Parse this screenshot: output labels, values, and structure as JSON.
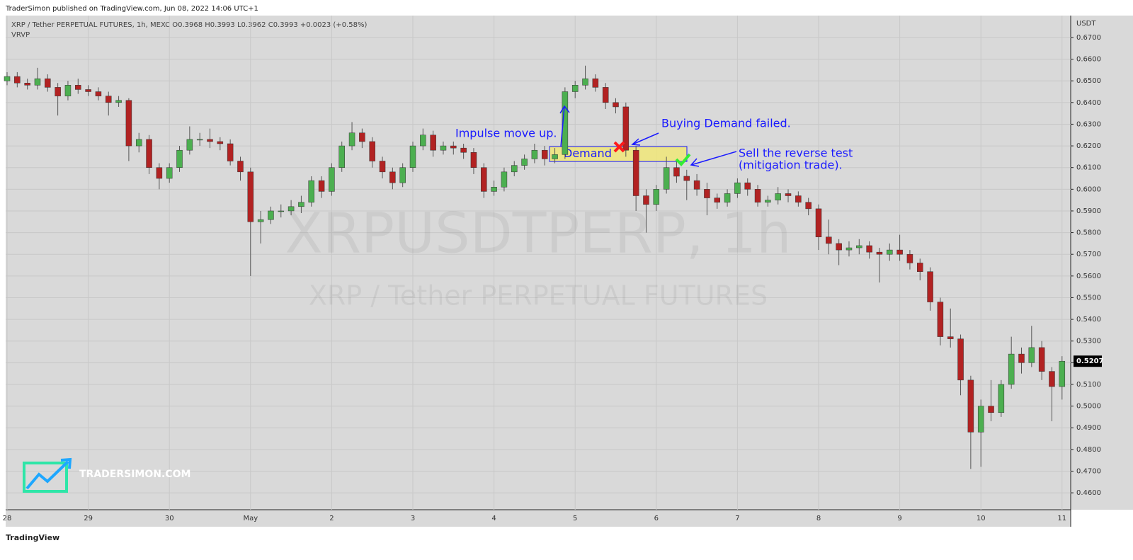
{
  "publisher_line": "TraderSimon published on TradingView.com, Jun 08, 2022 14:06 UTC+1",
  "footer_brand": "TradingView",
  "logo_text": "TRADERSIMON.COM",
  "chart_data": {
    "type": "candlestick",
    "title": "XRP / Tether PERPETUAL FUTURES, 1h, MEXC  O0.3968  H0.3993  L0.3962  C0.3993  +0.0023 (+0.58%)",
    "indicator": "VRVP",
    "watermark": "XRPUSDTPERP, 1h",
    "watermark_subtitle": "XRP / Tether PERPETUAL FUTURES",
    "y_unit": "USDT",
    "up_color": "#4caf50",
    "down_color": "#b22222",
    "grid": true,
    "categories": [
      "28",
      null,
      null,
      null,
      null,
      null,
      null,
      null,
      "29",
      null,
      null,
      null,
      null,
      null,
      null,
      null,
      "30",
      null,
      null,
      null,
      null,
      null,
      null,
      null,
      "May",
      null,
      null,
      null,
      null,
      null,
      null,
      null,
      "2",
      null,
      null,
      null,
      null,
      null,
      null,
      null,
      "3",
      null,
      null,
      null,
      null,
      null,
      null,
      null,
      "4",
      null,
      null,
      null,
      null,
      null,
      null,
      null,
      "5",
      null,
      null,
      null,
      null,
      null,
      null,
      null,
      "6",
      null,
      null,
      null,
      null,
      null,
      null,
      null,
      "7",
      null,
      null,
      null,
      null,
      null,
      null,
      null,
      "8",
      null,
      null,
      null,
      null,
      null,
      null,
      null,
      "9",
      null,
      null,
      null,
      null,
      null,
      null,
      null,
      "10",
      null,
      null,
      null,
      null,
      null,
      null,
      null,
      "11"
    ],
    "open": [
      0.65,
      0.652,
      0.649,
      0.648,
      0.651,
      0.647,
      0.643,
      0.648,
      0.646,
      0.645,
      0.643,
      0.64,
      0.641,
      0.62,
      0.623,
      0.61,
      0.605,
      0.61,
      0.618,
      0.623,
      0.623,
      0.622,
      0.621,
      0.613,
      0.608,
      0.585,
      0.586,
      0.59,
      0.59,
      0.592,
      0.594,
      0.604,
      0.599,
      0.61,
      0.62,
      0.626,
      0.622,
      0.613,
      0.608,
      0.603,
      0.61,
      0.62,
      0.625,
      0.618,
      0.62,
      0.619,
      0.617,
      0.61,
      0.599,
      0.601,
      0.608,
      0.611,
      0.614,
      0.618,
      0.614,
      0.616,
      0.645,
      0.648,
      0.651,
      0.647,
      0.64,
      0.638,
      0.618,
      0.597,
      0.593,
      0.6,
      0.61,
      0.606,
      0.604,
      0.6,
      0.596,
      0.594,
      0.598,
      0.603,
      0.6,
      0.594,
      0.595,
      0.598,
      0.597,
      0.594,
      0.591,
      0.578,
      0.575,
      0.572,
      0.573,
      0.574,
      0.571,
      0.57,
      0.572,
      0.57,
      0.566,
      0.562,
      0.548,
      0.532,
      0.531,
      0.512,
      0.488,
      0.5,
      0.497,
      0.51,
      0.524,
      0.52,
      0.527,
      0.516,
      0.509
    ],
    "high": [
      0.654,
      0.654,
      0.651,
      0.656,
      0.653,
      0.649,
      0.65,
      0.651,
      0.648,
      0.647,
      0.645,
      0.643,
      0.642,
      0.626,
      0.625,
      0.612,
      0.612,
      0.62,
      0.629,
      0.626,
      0.628,
      0.624,
      0.623,
      0.615,
      0.61,
      0.59,
      0.592,
      0.593,
      0.595,
      0.597,
      0.606,
      0.606,
      0.612,
      0.622,
      0.631,
      0.628,
      0.624,
      0.615,
      0.61,
      0.612,
      0.622,
      0.628,
      0.627,
      0.622,
      0.622,
      0.621,
      0.619,
      0.612,
      0.604,
      0.61,
      0.613,
      0.616,
      0.621,
      0.62,
      0.619,
      0.647,
      0.65,
      0.657,
      0.653,
      0.649,
      0.642,
      0.64,
      0.62,
      0.6,
      0.602,
      0.615,
      0.613,
      0.609,
      0.607,
      0.603,
      0.598,
      0.6,
      0.605,
      0.605,
      0.602,
      0.597,
      0.601,
      0.6,
      0.599,
      0.596,
      0.593,
      0.586,
      0.577,
      0.576,
      0.577,
      0.576,
      0.573,
      0.575,
      0.579,
      0.572,
      0.568,
      0.564,
      0.55,
      0.545,
      0.533,
      0.514,
      0.503,
      0.512,
      0.512,
      0.532,
      0.527,
      0.537,
      0.53,
      0.518,
      0.523
    ],
    "low": [
      0.648,
      0.647,
      0.646,
      0.646,
      0.645,
      0.634,
      0.641,
      0.644,
      0.643,
      0.641,
      0.634,
      0.638,
      0.613,
      0.617,
      0.607,
      0.6,
      0.603,
      0.608,
      0.616,
      0.62,
      0.619,
      0.618,
      0.611,
      0.604,
      0.56,
      0.575,
      0.584,
      0.587,
      0.588,
      0.589,
      0.592,
      0.596,
      0.597,
      0.608,
      0.618,
      0.619,
      0.61,
      0.605,
      0.6,
      0.601,
      0.608,
      0.618,
      0.615,
      0.616,
      0.616,
      0.614,
      0.607,
      0.596,
      0.597,
      0.599,
      0.606,
      0.609,
      0.612,
      0.611,
      0.612,
      0.614,
      0.642,
      0.646,
      0.645,
      0.637,
      0.635,
      0.615,
      0.59,
      0.58,
      0.59,
      0.598,
      0.603,
      0.595,
      0.597,
      0.588,
      0.591,
      0.592,
      0.596,
      0.597,
      0.592,
      0.592,
      0.593,
      0.594,
      0.592,
      0.588,
      0.572,
      0.57,
      0.565,
      0.569,
      0.57,
      0.568,
      0.557,
      0.567,
      0.567,
      0.563,
      0.558,
      0.544,
      0.528,
      0.527,
      0.505,
      0.471,
      0.472,
      0.493,
      0.495,
      0.508,
      0.515,
      0.518,
      0.512,
      0.493,
      0.503
    ],
    "close": [
      0.652,
      0.649,
      0.648,
      0.651,
      0.647,
      0.643,
      0.648,
      0.646,
      0.645,
      0.643,
      0.64,
      0.641,
      0.62,
      0.623,
      0.61,
      0.605,
      0.61,
      0.618,
      0.623,
      0.623,
      0.622,
      0.621,
      0.613,
      0.608,
      0.585,
      0.586,
      0.59,
      0.59,
      0.592,
      0.594,
      0.604,
      0.599,
      0.61,
      0.62,
      0.626,
      0.622,
      0.613,
      0.608,
      0.603,
      0.61,
      0.62,
      0.625,
      0.618,
      0.62,
      0.619,
      0.617,
      0.61,
      0.599,
      0.601,
      0.608,
      0.611,
      0.614,
      0.618,
      0.614,
      0.616,
      0.645,
      0.648,
      0.651,
      0.647,
      0.64,
      0.638,
      0.618,
      0.597,
      0.593,
      0.6,
      0.61,
      0.606,
      0.604,
      0.6,
      0.596,
      0.594,
      0.598,
      0.603,
      0.6,
      0.594,
      0.595,
      0.598,
      0.597,
      0.594,
      0.591,
      0.578,
      0.575,
      0.572,
      0.573,
      0.574,
      0.571,
      0.57,
      0.572,
      0.57,
      0.566,
      0.562,
      0.548,
      0.532,
      0.531,
      0.512,
      0.488,
      0.5,
      0.497,
      0.51,
      0.524,
      0.52,
      0.527,
      0.516,
      0.509,
      0.5207
    ],
    "ylim": [
      0.4522,
      0.6801
    ],
    "yticks": [
      {
        "value": 0.46,
        "label": "0.4600"
      },
      {
        "value": 0.47,
        "label": "0.4700"
      },
      {
        "value": 0.48,
        "label": "0.4800"
      },
      {
        "value": 0.49,
        "label": "0.4900"
      },
      {
        "value": 0.5,
        "label": "0.5000"
      },
      {
        "value": 0.51,
        "label": "0.5100"
      },
      {
        "value": 0.52,
        "label": "0.5200"
      },
      {
        "value": 0.53,
        "label": "0.5300"
      },
      {
        "value": 0.54,
        "label": "0.5400"
      },
      {
        "value": 0.55,
        "label": "0.5500"
      },
      {
        "value": 0.56,
        "label": "0.5600"
      },
      {
        "value": 0.57,
        "label": "0.5700"
      },
      {
        "value": 0.58,
        "label": "0.5800"
      },
      {
        "value": 0.59,
        "label": "0.5900"
      },
      {
        "value": 0.6,
        "label": "0.6000"
      },
      {
        "value": 0.61,
        "label": "0.6100"
      },
      {
        "value": 0.62,
        "label": "0.6200"
      },
      {
        "value": 0.63,
        "label": "0.6300"
      },
      {
        "value": 0.64,
        "label": "0.6400"
      },
      {
        "value": 0.65,
        "label": "0.6500"
      },
      {
        "value": 0.66,
        "label": "0.6600"
      },
      {
        "value": 0.67,
        "label": "0.6700"
      }
    ],
    "demand_zone": {
      "text": "Demand",
      "low": 0.6128,
      "high": 0.6197
    },
    "annotations": [
      "Impulse move up.",
      "Buying Demand failed.",
      "Sell the reverse test",
      "(mitigation trade)."
    ]
  }
}
